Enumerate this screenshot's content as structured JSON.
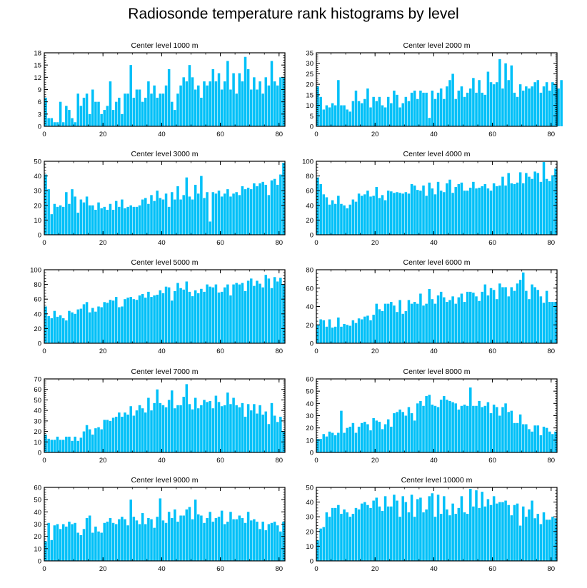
{
  "title": "Radiosonde temperature rank histograms by level",
  "colors": {
    "bar": "#00C0F8",
    "axis": "#000000",
    "background": "#ffffff"
  },
  "chart_data": [
    {
      "type": "bar",
      "title": "Center level 1000 m",
      "xlim": [
        0,
        82
      ],
      "ylim": [
        0,
        18
      ],
      "xticks": [
        0,
        20,
        40,
        60,
        80
      ],
      "yticks": [
        0,
        3,
        6,
        9,
        12,
        15,
        18
      ],
      "values": [
        7,
        2,
        2,
        1,
        1,
        6,
        1,
        5,
        4,
        2,
        1,
        8,
        5,
        7,
        8,
        3,
        9,
        6,
        6,
        3,
        4,
        5,
        11,
        4,
        6,
        7,
        3,
        8,
        8,
        15,
        7,
        9,
        9,
        6,
        7,
        11,
        8,
        10,
        7,
        8,
        8,
        10,
        14,
        6,
        4,
        8,
        10,
        12,
        11,
        15,
        12,
        9,
        10,
        7,
        11,
        10,
        11,
        14,
        11,
        13,
        9,
        11,
        16,
        9,
        13,
        8,
        13,
        11,
        17,
        14,
        9,
        12,
        9,
        11,
        8,
        12,
        10,
        16,
        11,
        10,
        12,
        12
      ]
    },
    {
      "type": "bar",
      "title": "Center level 2000 m",
      "xlim": [
        0,
        82
      ],
      "ylim": [
        0,
        35
      ],
      "xticks": [
        0,
        20,
        40,
        60,
        80
      ],
      "yticks": [
        0,
        5,
        10,
        15,
        20,
        25,
        30,
        35
      ],
      "values": [
        19,
        14,
        8,
        10,
        9,
        11,
        10,
        22,
        10,
        10,
        8,
        7,
        12,
        17,
        12,
        11,
        13,
        18,
        9,
        14,
        12,
        14,
        10,
        9,
        14,
        11,
        17,
        15,
        9,
        11,
        14,
        12,
        16,
        17,
        13,
        17,
        16,
        16,
        4,
        17,
        13,
        16,
        18,
        13,
        19,
        22,
        25,
        13,
        17,
        19,
        14,
        16,
        18,
        23,
        16,
        22,
        16,
        15,
        26,
        21,
        20,
        21,
        32,
        18,
        30,
        22,
        29,
        16,
        14,
        20,
        17,
        19,
        18,
        19,
        21,
        22,
        16,
        19,
        21,
        17,
        21,
        20,
        18,
        22
      ]
    },
    {
      "type": "bar",
      "title": "Center level 3000 m",
      "xlim": [
        0,
        82
      ],
      "ylim": [
        0,
        50
      ],
      "xticks": [
        0,
        20,
        40,
        60,
        80
      ],
      "yticks": [
        0,
        10,
        20,
        30,
        40,
        50
      ],
      "values": [
        41,
        31,
        14,
        21,
        19,
        20,
        19,
        29,
        21,
        31,
        26,
        15,
        24,
        22,
        26,
        20,
        20,
        17,
        22,
        18,
        19,
        17,
        21,
        17,
        23,
        19,
        24,
        18,
        19,
        20,
        19,
        19,
        20,
        24,
        25,
        21,
        27,
        23,
        30,
        25,
        24,
        28,
        19,
        29,
        24,
        33,
        24,
        27,
        39,
        26,
        24,
        34,
        28,
        40,
        25,
        29,
        9,
        29,
        28,
        30,
        26,
        28,
        31,
        26,
        28,
        29,
        27,
        33,
        31,
        32,
        31,
        35,
        33,
        35,
        36,
        34,
        27,
        37,
        38,
        34,
        41,
        49
      ]
    },
    {
      "type": "bar",
      "title": "Center level 4000 m",
      "xlim": [
        0,
        82
      ],
      "ylim": [
        0,
        100
      ],
      "xticks": [
        0,
        20,
        40,
        60,
        80
      ],
      "yticks": [
        0,
        20,
        40,
        60,
        80,
        100
      ],
      "values": [
        78,
        69,
        55,
        51,
        41,
        47,
        42,
        53,
        42,
        40,
        36,
        41,
        48,
        45,
        56,
        53,
        55,
        60,
        52,
        53,
        65,
        50,
        54,
        47,
        60,
        59,
        57,
        58,
        57,
        56,
        58,
        56,
        69,
        67,
        61,
        60,
        67,
        53,
        71,
        63,
        55,
        72,
        60,
        58,
        70,
        75,
        57,
        65,
        69,
        71,
        60,
        60,
        64,
        72,
        63,
        64,
        66,
        69,
        63,
        60,
        70,
        66,
        67,
        79,
        67,
        84,
        70,
        69,
        71,
        85,
        70,
        84,
        79,
        76,
        86,
        84,
        72,
        99,
        76,
        73,
        81,
        90
      ]
    },
    {
      "type": "bar",
      "title": "Center level 5000 m",
      "xlim": [
        0,
        82
      ],
      "ylim": [
        0,
        100
      ],
      "xticks": [
        0,
        20,
        40,
        60,
        80
      ],
      "yticks": [
        0,
        20,
        40,
        60,
        80,
        100
      ],
      "values": [
        50,
        37,
        34,
        44,
        36,
        38,
        34,
        31,
        44,
        42,
        40,
        46,
        47,
        53,
        56,
        42,
        48,
        43,
        50,
        49,
        56,
        55,
        59,
        58,
        63,
        49,
        50,
        60,
        62,
        63,
        60,
        59,
        65,
        67,
        62,
        70,
        63,
        65,
        66,
        72,
        68,
        77,
        76,
        58,
        71,
        82,
        75,
        73,
        84,
        70,
        64,
        72,
        68,
        74,
        70,
        80,
        77,
        76,
        80,
        69,
        70,
        76,
        80,
        65,
        80,
        82,
        80,
        82,
        71,
        85,
        88,
        78,
        85,
        81,
        76,
        93,
        88,
        75,
        90,
        84,
        89,
        80
      ]
    },
    {
      "type": "bar",
      "title": "Center level 6000 m",
      "xlim": [
        0,
        82
      ],
      "ylim": [
        0,
        80
      ],
      "xticks": [
        0,
        20,
        40,
        60,
        80
      ],
      "yticks": [
        0,
        20,
        40,
        60,
        80
      ],
      "values": [
        20,
        26,
        25,
        18,
        26,
        17,
        18,
        28,
        18,
        21,
        20,
        19,
        25,
        22,
        27,
        26,
        29,
        30,
        25,
        31,
        43,
        37,
        35,
        43,
        43,
        45,
        41,
        34,
        47,
        32,
        35,
        47,
        43,
        45,
        43,
        54,
        41,
        43,
        59,
        48,
        43,
        52,
        56,
        50,
        45,
        47,
        51,
        43,
        50,
        54,
        45,
        56,
        56,
        55,
        51,
        46,
        56,
        64,
        52,
        60,
        58,
        48,
        65,
        61,
        61,
        51,
        61,
        57,
        65,
        69,
        77,
        57,
        48,
        64,
        61,
        58,
        51,
        44,
        57,
        45,
        45,
        45
      ]
    },
    {
      "type": "bar",
      "title": "Center level 7000 m",
      "xlim": [
        0,
        82
      ],
      "ylim": [
        0,
        70
      ],
      "xticks": [
        0,
        20,
        40,
        60,
        80
      ],
      "yticks": [
        0,
        10,
        20,
        30,
        40,
        50,
        60,
        70
      ],
      "values": [
        17,
        13,
        12,
        12,
        15,
        12,
        12,
        15,
        15,
        11,
        15,
        11,
        14,
        20,
        26,
        22,
        17,
        23,
        24,
        22,
        31,
        31,
        30,
        33,
        34,
        38,
        34,
        38,
        36,
        44,
        35,
        40,
        45,
        42,
        38,
        52,
        40,
        47,
        60,
        47,
        45,
        43,
        50,
        59,
        42,
        45,
        45,
        53,
        65,
        46,
        41,
        52,
        42,
        45,
        50,
        48,
        49,
        42,
        54,
        48,
        44,
        45,
        57,
        46,
        52,
        45,
        43,
        47,
        34,
        46,
        40,
        46,
        37,
        45,
        36,
        39,
        27,
        47,
        35,
        29,
        34,
        20
      ]
    },
    {
      "type": "bar",
      "title": "Center level 8000 m",
      "xlim": [
        0,
        82
      ],
      "ylim": [
        0,
        60
      ],
      "xticks": [
        0,
        20,
        40,
        60,
        80
      ],
      "yticks": [
        0,
        10,
        20,
        30,
        40,
        50,
        60
      ],
      "values": [
        11,
        11,
        15,
        13,
        17,
        16,
        14,
        16,
        34,
        16,
        20,
        21,
        24,
        16,
        21,
        24,
        25,
        23,
        18,
        28,
        26,
        25,
        19,
        23,
        27,
        21,
        32,
        33,
        35,
        33,
        30,
        37,
        32,
        26,
        40,
        42,
        38,
        46,
        47,
        39,
        38,
        37,
        43,
        46,
        43,
        42,
        41,
        40,
        35,
        38,
        39,
        38,
        53,
        38,
        38,
        42,
        37,
        38,
        41,
        32,
        39,
        37,
        30,
        37,
        40,
        33,
        34,
        24,
        24,
        31,
        23,
        23,
        19,
        17,
        22,
        22,
        14,
        21,
        20,
        17,
        15,
        17
      ]
    },
    {
      "type": "bar",
      "title": "Center level 9000 m",
      "xlim": [
        0,
        82
      ],
      "ylim": [
        0,
        60
      ],
      "xticks": [
        0,
        20,
        40,
        60,
        80
      ],
      "yticks": [
        0,
        10,
        20,
        30,
        40,
        50,
        60
      ],
      "values": [
        16,
        31,
        17,
        29,
        30,
        26,
        30,
        28,
        32,
        30,
        31,
        23,
        21,
        26,
        35,
        37,
        23,
        28,
        24,
        23,
        31,
        32,
        35,
        31,
        30,
        34,
        36,
        34,
        29,
        50,
        36,
        33,
        30,
        39,
        30,
        35,
        34,
        27,
        36,
        51,
        33,
        31,
        40,
        35,
        42,
        32,
        37,
        37,
        42,
        44,
        34,
        50,
        38,
        37,
        31,
        35,
        40,
        32,
        35,
        36,
        41,
        30,
        32,
        40,
        34,
        34,
        37,
        35,
        31,
        40,
        33,
        34,
        32,
        26,
        32,
        25,
        30,
        31,
        32,
        29,
        24,
        32
      ]
    },
    {
      "type": "bar",
      "title": "Center level 10000 m",
      "xlim": [
        0,
        82
      ],
      "ylim": [
        0,
        50
      ],
      "xticks": [
        0,
        20,
        40,
        60,
        80
      ],
      "yticks": [
        0,
        10,
        20,
        30,
        40,
        50
      ],
      "values": [
        14,
        22,
        23,
        33,
        30,
        36,
        36,
        38,
        32,
        35,
        33,
        30,
        32,
        36,
        35,
        39,
        40,
        38,
        36,
        41,
        43,
        37,
        34,
        44,
        37,
        37,
        45,
        41,
        30,
        44,
        40,
        33,
        45,
        30,
        42,
        43,
        33,
        35,
        44,
        46,
        30,
        45,
        32,
        44,
        35,
        31,
        39,
        32,
        36,
        44,
        33,
        32,
        49,
        37,
        48,
        36,
        47,
        37,
        42,
        38,
        44,
        39,
        40,
        40,
        41,
        38,
        31,
        38,
        39,
        24,
        37,
        30,
        35,
        41,
        29,
        32,
        25,
        33,
        28,
        28,
        30,
        29
      ]
    }
  ]
}
